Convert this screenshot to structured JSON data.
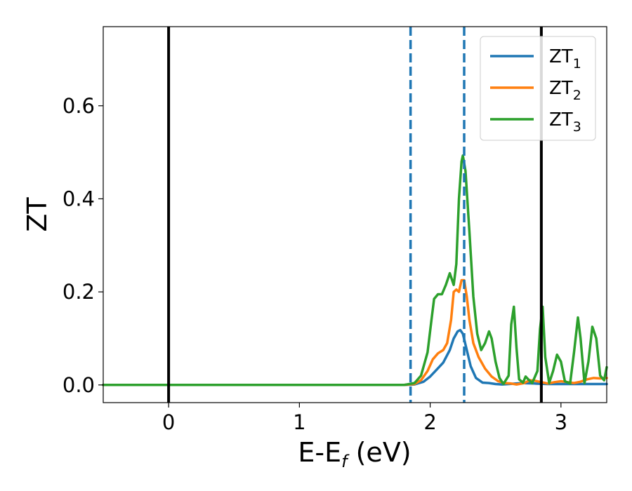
{
  "chart_data": {
    "type": "line",
    "xlabel": "E-E",
    "xlabel_sub": "f",
    "xlabel_unit": " (eV)",
    "ylabel": "ZT",
    "xlim": [
      -0.5,
      3.35
    ],
    "ylim": [
      -0.038,
      0.77
    ],
    "x_ticks": [
      0,
      1,
      2,
      3
    ],
    "x_tick_labels": [
      "0",
      "1",
      "2",
      "3"
    ],
    "y_ticks": [
      0.0,
      0.2,
      0.4,
      0.6
    ],
    "y_tick_labels": [
      "0.0",
      "0.2",
      "0.4",
      "0.6"
    ],
    "grid": false,
    "legend_position": "top-right",
    "reference_lines": [
      {
        "x": 0.0,
        "style": "solid",
        "color": "#000000"
      },
      {
        "x": 2.85,
        "style": "solid",
        "color": "#000000"
      },
      {
        "x": 1.85,
        "style": "dashed",
        "color": "#1f77b4"
      },
      {
        "x": 2.26,
        "style": "dashed",
        "color": "#1f77b4"
      }
    ],
    "series": [
      {
        "name": "ZT",
        "sub": "1",
        "color": "#1f77b4",
        "points": [
          [
            -0.5,
            0.0
          ],
          [
            1.8,
            0.0
          ],
          [
            1.88,
            0.001
          ],
          [
            1.95,
            0.007
          ],
          [
            2.0,
            0.018
          ],
          [
            2.05,
            0.033
          ],
          [
            2.1,
            0.048
          ],
          [
            2.15,
            0.075
          ],
          [
            2.18,
            0.1
          ],
          [
            2.21,
            0.115
          ],
          [
            2.23,
            0.118
          ],
          [
            2.25,
            0.11
          ],
          [
            2.28,
            0.075
          ],
          [
            2.31,
            0.04
          ],
          [
            2.35,
            0.015
          ],
          [
            2.4,
            0.005
          ],
          [
            2.45,
            0.004
          ],
          [
            2.5,
            0.002
          ],
          [
            2.55,
            0.001
          ],
          [
            2.6,
            0.002
          ],
          [
            2.7,
            0.004
          ],
          [
            2.8,
            0.003
          ],
          [
            2.9,
            0.002
          ],
          [
            3.0,
            0.002
          ],
          [
            3.2,
            0.002
          ],
          [
            3.35,
            0.002
          ]
        ]
      },
      {
        "name": "ZT",
        "sub": "2",
        "color": "#ff7f0e",
        "points": [
          [
            -0.5,
            0.0
          ],
          [
            1.8,
            0.0
          ],
          [
            1.88,
            0.002
          ],
          [
            1.93,
            0.01
          ],
          [
            1.98,
            0.03
          ],
          [
            2.02,
            0.055
          ],
          [
            2.06,
            0.068
          ],
          [
            2.1,
            0.075
          ],
          [
            2.13,
            0.09
          ],
          [
            2.16,
            0.14
          ],
          [
            2.18,
            0.2
          ],
          [
            2.2,
            0.205
          ],
          [
            2.22,
            0.2
          ],
          [
            2.24,
            0.225
          ],
          [
            2.26,
            0.225
          ],
          [
            2.28,
            0.19
          ],
          [
            2.3,
            0.14
          ],
          [
            2.33,
            0.09
          ],
          [
            2.37,
            0.06
          ],
          [
            2.42,
            0.035
          ],
          [
            2.47,
            0.018
          ],
          [
            2.52,
            0.008
          ],
          [
            2.57,
            0.004
          ],
          [
            2.62,
            0.003
          ],
          [
            2.66,
            0.001
          ],
          [
            2.72,
            0.004
          ],
          [
            2.76,
            0.01
          ],
          [
            2.8,
            0.009
          ],
          [
            2.85,
            0.006
          ],
          [
            2.9,
            0.003
          ],
          [
            2.95,
            0.006
          ],
          [
            3.0,
            0.008
          ],
          [
            3.05,
            0.006
          ],
          [
            3.1,
            0.004
          ],
          [
            3.15,
            0.007
          ],
          [
            3.2,
            0.012
          ],
          [
            3.25,
            0.015
          ],
          [
            3.3,
            0.014
          ],
          [
            3.35,
            0.015
          ]
        ]
      },
      {
        "name": "ZT",
        "sub": "3",
        "color": "#2ca02c",
        "points": [
          [
            -0.5,
            0.0
          ],
          [
            1.8,
            0.0
          ],
          [
            1.88,
            0.004
          ],
          [
            1.93,
            0.02
          ],
          [
            1.98,
            0.07
          ],
          [
            2.01,
            0.14
          ],
          [
            2.03,
            0.185
          ],
          [
            2.06,
            0.195
          ],
          [
            2.09,
            0.195
          ],
          [
            2.12,
            0.215
          ],
          [
            2.15,
            0.24
          ],
          [
            2.18,
            0.215
          ],
          [
            2.2,
            0.26
          ],
          [
            2.22,
            0.4
          ],
          [
            2.24,
            0.48
          ],
          [
            2.25,
            0.493
          ],
          [
            2.27,
            0.46
          ],
          [
            2.3,
            0.33
          ],
          [
            2.33,
            0.19
          ],
          [
            2.36,
            0.11
          ],
          [
            2.39,
            0.075
          ],
          [
            2.42,
            0.09
          ],
          [
            2.45,
            0.115
          ],
          [
            2.47,
            0.1
          ],
          [
            2.5,
            0.05
          ],
          [
            2.53,
            0.015
          ],
          [
            2.56,
            0.002
          ],
          [
            2.6,
            0.02
          ],
          [
            2.62,
            0.13
          ],
          [
            2.64,
            0.168
          ],
          [
            2.66,
            0.08
          ],
          [
            2.68,
            0.012
          ],
          [
            2.71,
            0.005
          ],
          [
            2.73,
            0.018
          ],
          [
            2.75,
            0.012
          ],
          [
            2.78,
            0.004
          ],
          [
            2.82,
            0.03
          ],
          [
            2.84,
            0.12
          ],
          [
            2.86,
            0.168
          ],
          [
            2.88,
            0.06
          ],
          [
            2.91,
            0.004
          ],
          [
            2.94,
            0.03
          ],
          [
            2.97,
            0.065
          ],
          [
            3.0,
            0.05
          ],
          [
            3.03,
            0.008
          ],
          [
            3.07,
            0.003
          ],
          [
            3.1,
            0.07
          ],
          [
            3.13,
            0.145
          ],
          [
            3.15,
            0.1
          ],
          [
            3.18,
            0.004
          ],
          [
            3.21,
            0.05
          ],
          [
            3.24,
            0.125
          ],
          [
            3.27,
            0.1
          ],
          [
            3.3,
            0.02
          ],
          [
            3.33,
            0.01
          ],
          [
            3.35,
            0.038
          ]
        ]
      }
    ]
  }
}
